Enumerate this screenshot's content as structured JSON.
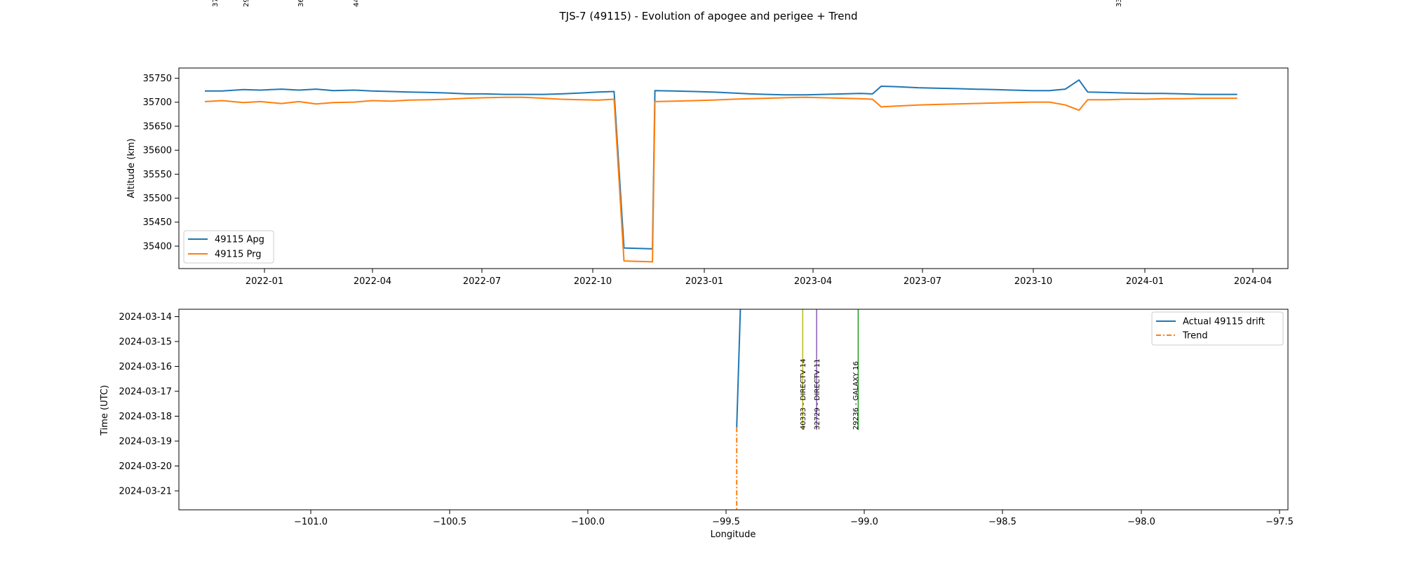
{
  "figure_title": "TJS-7 (49115) - Evolution of apogee and perigee + Trend",
  "top_cut_labels": [
    "37",
    "29",
    "36",
    "44",
    "33"
  ],
  "chart_data": [
    {
      "type": "line",
      "ylabel": "Altitude (km)",
      "xlabel": "",
      "x_tick_labels": [
        "2022-01",
        "2022-04",
        "2022-07",
        "2022-10",
        "2023-01",
        "2023-04",
        "2023-07",
        "2023-10",
        "2024-01",
        "2024-04"
      ],
      "y_tick_labels": [
        "35750",
        "35700",
        "35650",
        "35600",
        "35550",
        "35500",
        "35450",
        "35400"
      ],
      "ylim": [
        35358,
        35776
      ],
      "xlim": [
        "2021-11-10",
        "2024-04-25"
      ],
      "grid": false,
      "legend_position": "lower-left",
      "series": [
        {
          "name": "49115 Apg",
          "color": "#1f77b4",
          "points": [
            [
              "2021-12-01",
              35728
            ],
            [
              "2021-12-15",
              35728
            ],
            [
              "2022-01-01",
              35731
            ],
            [
              "2022-01-15",
              35730
            ],
            [
              "2022-02-01",
              35732
            ],
            [
              "2022-02-15",
              35730
            ],
            [
              "2022-03-01",
              35732
            ],
            [
              "2022-03-15",
              35729
            ],
            [
              "2022-04-01",
              35730
            ],
            [
              "2022-04-15",
              35728
            ],
            [
              "2022-05-01",
              35727
            ],
            [
              "2022-05-15",
              35726
            ],
            [
              "2022-06-01",
              35725
            ],
            [
              "2022-06-15",
              35724
            ],
            [
              "2022-07-01",
              35722
            ],
            [
              "2022-07-15",
              35722
            ],
            [
              "2022-08-01",
              35721
            ],
            [
              "2022-08-15",
              35721
            ],
            [
              "2022-09-01",
              35721
            ],
            [
              "2022-09-15",
              35722
            ],
            [
              "2022-10-01",
              35724
            ],
            [
              "2022-10-15",
              35726
            ],
            [
              "2022-10-28",
              35727
            ],
            [
              "2022-11-05",
              35401
            ],
            [
              "2022-11-28",
              35399
            ],
            [
              "2022-11-30",
              35729
            ],
            [
              "2022-12-15",
              35728
            ],
            [
              "2023-01-01",
              35727
            ],
            [
              "2023-01-15",
              35726
            ],
            [
              "2023-02-01",
              35724
            ],
            [
              "2023-02-15",
              35722
            ],
            [
              "2023-03-01",
              35721
            ],
            [
              "2023-03-15",
              35720
            ],
            [
              "2023-04-01",
              35720
            ],
            [
              "2023-04-15",
              35721
            ],
            [
              "2023-05-01",
              35722
            ],
            [
              "2023-05-15",
              35723
            ],
            [
              "2023-05-25",
              35722
            ],
            [
              "2023-06-01",
              35738
            ],
            [
              "2023-06-15",
              35737
            ],
            [
              "2023-07-01",
              35735
            ],
            [
              "2023-07-15",
              35734
            ],
            [
              "2023-08-01",
              35733
            ],
            [
              "2023-08-15",
              35732
            ],
            [
              "2023-09-01",
              35731
            ],
            [
              "2023-09-15",
              35730
            ],
            [
              "2023-10-01",
              35729
            ],
            [
              "2023-10-15",
              35729
            ],
            [
              "2023-10-28",
              35732
            ],
            [
              "2023-11-08",
              35751
            ],
            [
              "2023-11-15",
              35726
            ],
            [
              "2023-12-01",
              35725
            ],
            [
              "2023-12-15",
              35724
            ],
            [
              "2024-01-01",
              35723
            ],
            [
              "2024-01-15",
              35723
            ],
            [
              "2024-02-01",
              35722
            ],
            [
              "2024-02-15",
              35721
            ],
            [
              "2024-03-01",
              35721
            ],
            [
              "2024-03-15",
              35721
            ]
          ]
        },
        {
          "name": "49115 Prg",
          "color": "#ff7f0e",
          "points": [
            [
              "2021-12-01",
              35706
            ],
            [
              "2021-12-15",
              35708
            ],
            [
              "2022-01-01",
              35704
            ],
            [
              "2022-01-15",
              35706
            ],
            [
              "2022-02-01",
              35702
            ],
            [
              "2022-02-15",
              35706
            ],
            [
              "2022-03-01",
              35701
            ],
            [
              "2022-03-15",
              35704
            ],
            [
              "2022-04-01",
              35705
            ],
            [
              "2022-04-15",
              35708
            ],
            [
              "2022-05-01",
              35707
            ],
            [
              "2022-05-15",
              35709
            ],
            [
              "2022-06-01",
              35710
            ],
            [
              "2022-06-15",
              35711
            ],
            [
              "2022-07-01",
              35713
            ],
            [
              "2022-07-15",
              35714
            ],
            [
              "2022-08-01",
              35715
            ],
            [
              "2022-08-15",
              35715
            ],
            [
              "2022-09-01",
              35713
            ],
            [
              "2022-09-15",
              35711
            ],
            [
              "2022-10-01",
              35710
            ],
            [
              "2022-10-15",
              35709
            ],
            [
              "2022-10-28",
              35711
            ],
            [
              "2022-11-05",
              35374
            ],
            [
              "2022-11-28",
              35372
            ],
            [
              "2022-11-30",
              35706
            ],
            [
              "2022-12-15",
              35707
            ],
            [
              "2023-01-01",
              35708
            ],
            [
              "2023-01-15",
              35709
            ],
            [
              "2023-02-01",
              35711
            ],
            [
              "2023-02-15",
              35712
            ],
            [
              "2023-03-01",
              35713
            ],
            [
              "2023-03-15",
              35714
            ],
            [
              "2023-04-01",
              35715
            ],
            [
              "2023-04-15",
              35714
            ],
            [
              "2023-05-01",
              35713
            ],
            [
              "2023-05-15",
              35712
            ],
            [
              "2023-05-25",
              35711
            ],
            [
              "2023-06-01",
              35695
            ],
            [
              "2023-06-15",
              35697
            ],
            [
              "2023-07-01",
              35699
            ],
            [
              "2023-07-15",
              35700
            ],
            [
              "2023-08-01",
              35701
            ],
            [
              "2023-08-15",
              35702
            ],
            [
              "2023-09-01",
              35703
            ],
            [
              "2023-09-15",
              35704
            ],
            [
              "2023-10-01",
              35705
            ],
            [
              "2023-10-15",
              35705
            ],
            [
              "2023-10-28",
              35699
            ],
            [
              "2023-11-08",
              35688
            ],
            [
              "2023-11-15",
              35710
            ],
            [
              "2023-12-01",
              35710
            ],
            [
              "2023-12-15",
              35711
            ],
            [
              "2024-01-01",
              35711
            ],
            [
              "2024-01-15",
              35712
            ],
            [
              "2024-02-01",
              35712
            ],
            [
              "2024-02-15",
              35713
            ],
            [
              "2024-03-01",
              35713
            ],
            [
              "2024-03-15",
              35713
            ]
          ]
        }
      ]
    },
    {
      "type": "line",
      "xlabel": "Longitude",
      "ylabel": "Time (UTC)",
      "x_ticks": [
        -101.0,
        -100.5,
        -100.0,
        -99.5,
        -99.0,
        -98.5,
        -98.0,
        -97.5
      ],
      "x_tick_labels": [
        "−101.0",
        "−100.5",
        "−100.0",
        "−99.5",
        "−99.0",
        "−98.5",
        "−98.0",
        "−97.5"
      ],
      "y_ticks": [
        "2024-03-14",
        "2024-03-15",
        "2024-03-16",
        "2024-03-17",
        "2024-03-18",
        "2024-03-19",
        "2024-03-20",
        "2024-03-21"
      ],
      "y_tick_labels": [
        "2024-03-14",
        "2024-03-15",
        "2024-03-16",
        "2024-03-17",
        "2024-03-18",
        "2024-03-19",
        "2024-03-20",
        "2024-03-21"
      ],
      "xlim": [
        -101.48,
        -97.48
      ],
      "ylim_top": "2024-03-13 19:00",
      "ylim_bottom": "2024-03-21 19:00",
      "y_inverted": true,
      "grid": false,
      "legend_position": "upper-right",
      "series": [
        {
          "name": "Actual 49115 drift",
          "color": "#1f77b4",
          "style": "solid",
          "points": [
            [
              -99.455,
              "2024-03-13 19:00"
            ],
            [
              -99.468,
              "2024-03-18 12:00"
            ]
          ]
        },
        {
          "name": "Trend",
          "color": "#ff7f0e",
          "style": "dashdot",
          "points": [
            [
              -99.468,
              "2024-03-18 12:00"
            ],
            [
              -99.468,
              "2024-03-21 19:00"
            ]
          ]
        }
      ],
      "reference_satellites": [
        {
          "label": "40333 - DIRECTV 14",
          "longitude": -99.23,
          "color": "#bcbd22"
        },
        {
          "label": "32729 - DIRECTV 11",
          "longitude": -99.18,
          "color": "#9467bd"
        },
        {
          "label": "29236 - GALAXY 16",
          "longitude": -99.03,
          "color": "#2ca02c"
        }
      ]
    }
  ]
}
